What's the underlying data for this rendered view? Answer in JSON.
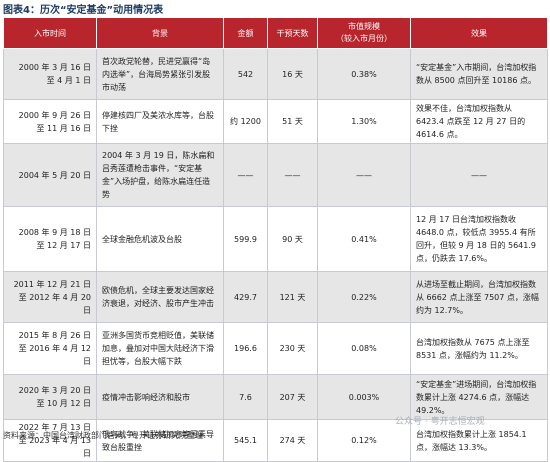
{
  "title": "图表4：历次“安定基金”动用情况表",
  "headers": [
    "入市时间",
    "背景",
    "金额",
    "干预天数",
    "市值规模\n（较入市月份）",
    "效果"
  ],
  "rows": [
    [
      "2000 年 3 月 16 日\n至 4 月 1 日",
      "首次政党轮替，民进党赢得“岛内选举”，台海局势紧张引发股市动荡",
      "542",
      "16 天",
      "0.38%",
      "“安定基金”入市期间，台湾加权指数从 8500 点回升至 10186 点。"
    ],
    [
      "2000 年 9 月 26 日\n至 11 月 16 日",
      "停建核四厂及美浓水库等，台股下挫",
      "约 1200",
      "51 天",
      "1.30%",
      "效果不佳，台湾加权指数从 6423.4 点跌至 12 月 27 日的 4614.6 点。"
    ],
    [
      "2004 年 5 月 20 日",
      "2004 年 3 月 19 日，陈水扁和吕秀莲遭枪击事件，“安定基金”入场护盘，给陈水扁连任造势",
      "——",
      "——",
      "——",
      "——"
    ],
    [
      "2008 年 9 月 18 日\n至 12 月 17 日",
      "全球金融危机波及台股",
      "599.9",
      "90 天",
      "0.41%",
      "12 月 17 日台湾加权指数收 4648.0 点，较低点 3955.4 有所回升，但较 9 月 18 日的 5641.9 点，仍跌去 17.6%。"
    ],
    [
      "2011 年 12 月 21 日\n至 2012 年 4 月 20 日",
      "欧债危机，全球主要发达国家经济衰退，对经济、股市产生冲击",
      "429.7",
      "121 天",
      "0.22%",
      "从进场至截止期间，台湾加权指数从 6662 点上涨至 7507 点，涨幅约为 12.7%。"
    ],
    [
      "2015 年 8 月 26 日\n至 2016 年 4 月 12 日",
      "亚洲多国货币竞相贬值，美联储加息，叠加对中国大陆经济下滑担忧等，台股大幅下跌",
      "196.6",
      "230 天",
      "0.08%",
      "台湾加权指数从 7675 点上涨至 8531 点，涨幅约为 11.2%。"
    ],
    [
      "2020 年 3 月 20 日\n至 10 月 12 日",
      "疫情冲击影响经济和股市",
      "7.6",
      "207 天",
      "0.003%",
      "“安定基金”进场期间，台湾加权指数累计上涨 4274.6 点，涨幅达 49.2%。"
    ],
    [
      "2022 年 7 月 13 日\n至 2023 年 4 月 13 日",
      "俄乌战争，美联储加息等因素导致台股重挫",
      "545.1",
      "274 天",
      "0.12%",
      "台湾加权指数累计上涨 1854.1 点，涨幅达 13.3%。"
    ]
  ],
  "source": "资料来源：中国台湾财政部门官网，粤开证券研究院整理",
  "watermark": "公众号 · 粤开志恒宏观"
}
